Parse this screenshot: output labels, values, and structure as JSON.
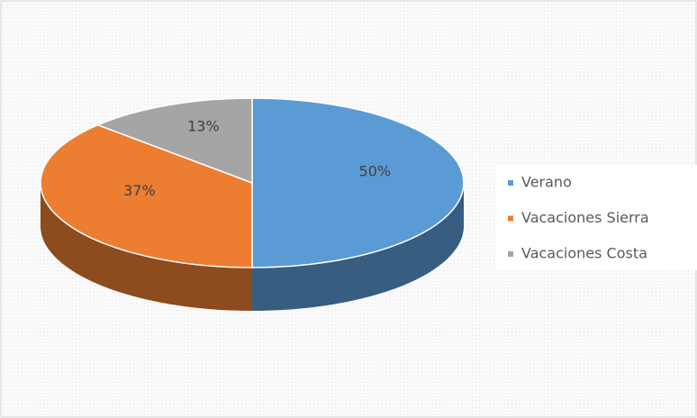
{
  "chart_data": {
    "type": "pie",
    "categories": [
      "Verano",
      "Vacaciones Sierra",
      "Vacaciones Costa"
    ],
    "values": [
      50,
      37,
      13
    ],
    "value_labels": [
      "50%",
      "37%",
      "13%"
    ],
    "colors": [
      "#5b9bd5",
      "#ed7d31",
      "#a5a5a5"
    ],
    "legend": "right"
  }
}
